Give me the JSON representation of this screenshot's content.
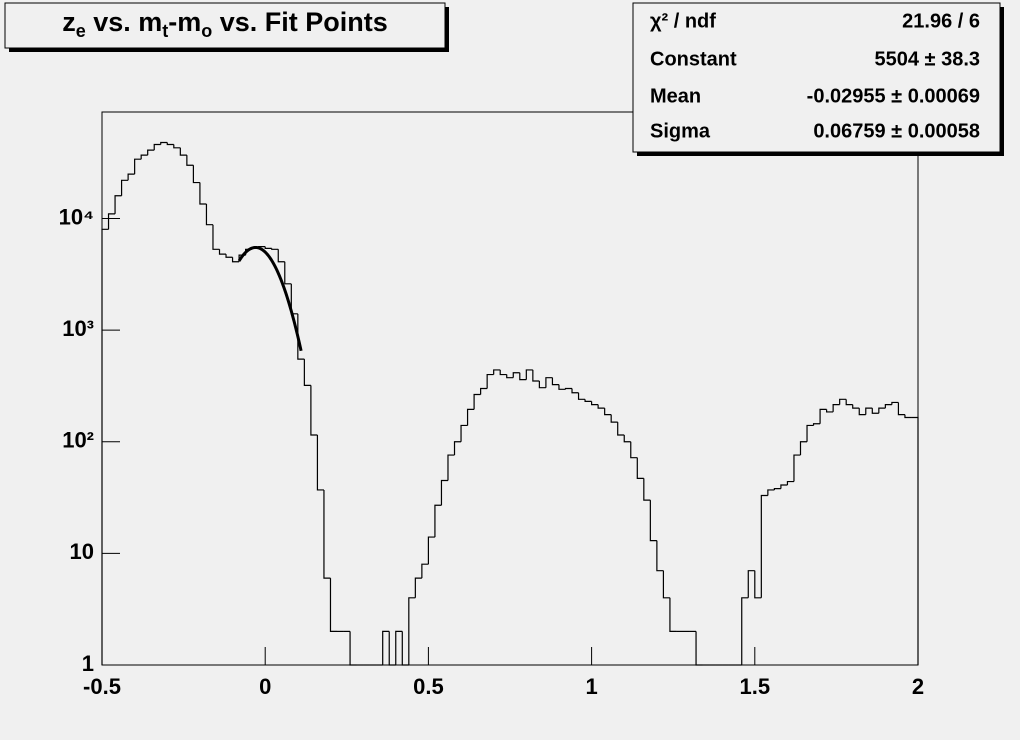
{
  "chart_data": {
    "type": "histogram",
    "title": [
      {
        "text": "z"
      },
      {
        "text": "e",
        "sub": true
      },
      {
        "text": " vs. m"
      },
      {
        "text": "t",
        "sub": true
      },
      {
        "text": "-m"
      },
      {
        "text": "o",
        "sub": true
      },
      {
        "text": " vs. Fit Points"
      }
    ],
    "bins": [
      -0.5,
      -0.48,
      -0.46,
      -0.44,
      -0.42,
      -0.4,
      -0.38,
      -0.36,
      -0.34,
      -0.32,
      -0.3,
      -0.28,
      -0.26,
      -0.24,
      -0.22,
      -0.2,
      -0.18,
      -0.16,
      -0.14,
      -0.12,
      -0.1,
      -0.08,
      -0.06,
      -0.04,
      -0.02,
      0,
      0.02,
      0.04,
      0.06,
      0.08,
      0.1,
      0.12,
      0.14,
      0.16,
      0.18,
      0.2,
      0.22,
      0.24,
      0.26,
      0.28,
      0.3,
      0.32,
      0.34,
      0.36,
      0.38,
      0.4,
      0.42,
      0.44,
      0.46,
      0.48,
      0.5,
      0.52,
      0.54,
      0.56,
      0.58,
      0.6,
      0.62,
      0.64,
      0.66,
      0.68,
      0.7,
      0.72,
      0.74,
      0.76,
      0.78,
      0.8,
      0.82,
      0.84,
      0.86,
      0.88,
      0.9,
      0.92,
      0.94,
      0.96,
      0.98,
      1,
      1.02,
      1.04,
      1.06,
      1.08,
      1.1,
      1.12,
      1.14,
      1.16,
      1.18,
      1.2,
      1.22,
      1.24,
      1.26,
      1.28,
      1.3,
      1.32,
      1.34,
      1.36,
      1.38,
      1.4,
      1.42,
      1.44,
      1.46,
      1.48,
      1.5,
      1.52,
      1.54,
      1.56,
      1.58,
      1.6,
      1.62,
      1.64,
      1.66,
      1.68,
      1.7,
      1.72,
      1.74,
      1.76,
      1.78,
      1.8,
      1.82,
      1.84,
      1.86,
      1.88,
      1.9,
      1.92,
      1.94,
      1.96,
      1.98,
      2
    ],
    "values": [
      8000,
      11000,
      16000,
      22000,
      25000,
      34000,
      37000,
      41000,
      46000,
      48000,
      46000,
      43000,
      37000,
      30000,
      21000,
      13500,
      8800,
      5300,
      4800,
      4500,
      4100,
      4700,
      5300,
      5500,
      5600,
      5400,
      5300,
      4100,
      2600,
      1400,
      550,
      320,
      115,
      37,
      6,
      2,
      2,
      2,
      0,
      0,
      0,
      0,
      0,
      2,
      0,
      2,
      1,
      4,
      6,
      8,
      14,
      27,
      45,
      76,
      100,
      140,
      195,
      265,
      300,
      400,
      440,
      400,
      375,
      415,
      360,
      440,
      350,
      305,
      375,
      325,
      295,
      300,
      275,
      240,
      230,
      215,
      200,
      175,
      150,
      115,
      100,
      72,
      47,
      30,
      13,
      7,
      4,
      2,
      2,
      2,
      2,
      0,
      0,
      0,
      0,
      0,
      0,
      0,
      4,
      7,
      4,
      33,
      37,
      38,
      41,
      44,
      76,
      100,
      140,
      145,
      195,
      185,
      215,
      240,
      215,
      200,
      175,
      200,
      180,
      200,
      215,
      225,
      175,
      165,
      165
    ],
    "color": "#000000",
    "xlim": [
      -0.5,
      2
    ],
    "xticks": [
      -0.5,
      0,
      0.5,
      1,
      1.5,
      2
    ],
    "ylim": [
      1,
      90000
    ],
    "log_y": true,
    "yticks": [
      1,
      10,
      {
        "value": 100,
        "label": "10²"
      },
      {
        "value": 1000,
        "label": "10³"
      },
      {
        "value": 10000,
        "label": "10⁴"
      }
    ],
    "grid": false,
    "fit": {
      "constant": 5504,
      "mean": -0.02955,
      "sigma": 0.06759,
      "xlim": [
        -0.08,
        0.11
      ],
      "color": "#000000"
    },
    "stats": [
      {
        "name": "χ² / ndf",
        "value_label": "21.96 / 6"
      },
      {
        "name": "Constant",
        "value_label": "5504 ± 38.3"
      },
      {
        "name": "Mean",
        "value_label": "-0.02955 ± 0.00069"
      },
      {
        "name": "Sigma",
        "value_label": "0.06759 ± 0.00058"
      }
    ]
  }
}
